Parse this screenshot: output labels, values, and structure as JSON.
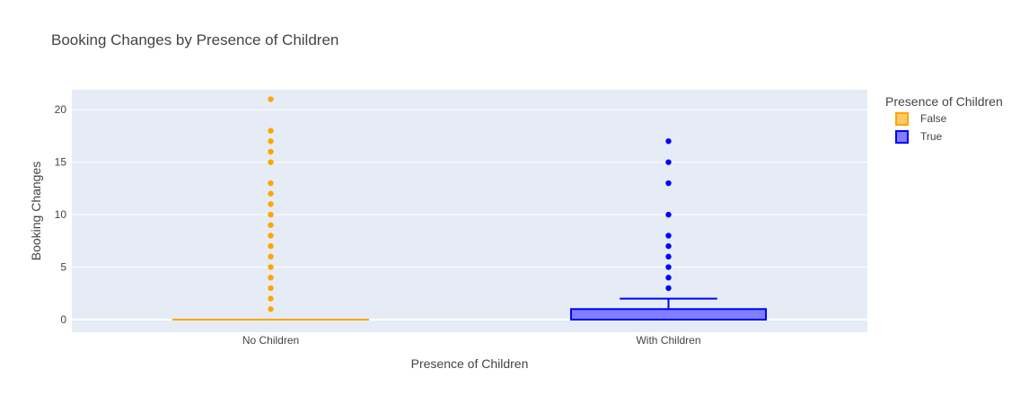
{
  "chart_data": {
    "type": "box",
    "title": "Booking Changes by Presence of Children",
    "xlabel": "Presence of Children",
    "ylabel": "Booking Changes",
    "categories": [
      "No Children",
      "With Children"
    ],
    "ylim": [
      -1.2,
      21.9
    ],
    "yticks": [
      0,
      5,
      10,
      15,
      20
    ],
    "grid": true,
    "legend": {
      "title": "Presence of Children",
      "placement": "right"
    },
    "series": [
      {
        "name": "False",
        "category": "No Children",
        "color": "#FFA500",
        "fill": "#FFC966",
        "min": 0,
        "q1": 0,
        "median": 0,
        "q3": 0,
        "max": 0,
        "outliers": [
          1,
          2,
          3,
          4,
          5,
          6,
          7,
          8,
          9,
          10,
          11,
          12,
          13,
          15,
          16,
          17,
          18,
          21
        ]
      },
      {
        "name": "True",
        "category": "With Children",
        "color": "#0000FF",
        "fill": "#7F7FFF",
        "min": 0,
        "q1": 0,
        "median": 0,
        "q3": 1,
        "max": 2,
        "outliers": [
          3,
          4,
          5,
          6,
          7,
          8,
          10,
          13,
          15,
          17
        ]
      }
    ]
  }
}
